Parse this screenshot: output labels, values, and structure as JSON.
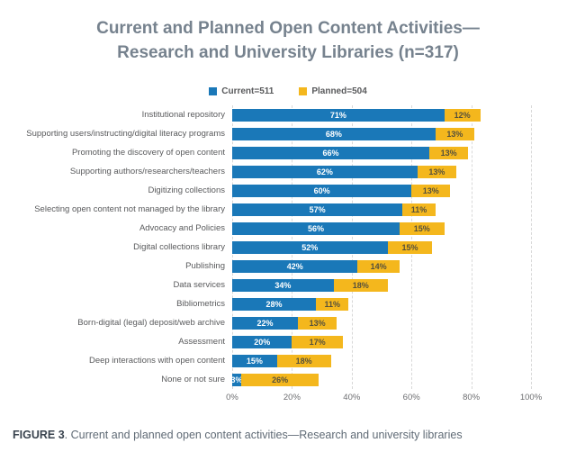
{
  "title": {
    "line1": "Current and Planned Open Content Activities—",
    "line2": "Research and University Libraries (n=317)"
  },
  "legend": {
    "items": [
      {
        "label": "Current=511",
        "color": "#1a78b8"
      },
      {
        "label": "Planned=504",
        "color": "#f4b71d"
      }
    ]
  },
  "chart_data": {
    "type": "bar",
    "orientation": "horizontal-stacked",
    "title": "Current and Planned Open Content Activities—Research and University Libraries (n=317)",
    "categories": [
      "Institutional repository",
      "Supporting users/instructing/digital literacy programs",
      "Promoting the discovery of open content",
      "Supporting authors/researchers/teachers",
      "Digitizing collections",
      "Selecting open content not managed by the library",
      "Advocacy and Policies",
      "Digital collections library",
      "Publishing",
      "Data services",
      "Bibliometrics",
      "Born-digital (legal) deposit/web archive",
      "Assessment",
      "Deep interactions with open content",
      "None or not sure"
    ],
    "series": [
      {
        "name": "Current",
        "color": "#1a78b8",
        "values": [
          71,
          68,
          66,
          62,
          60,
          57,
          56,
          52,
          42,
          34,
          28,
          22,
          20,
          15,
          3
        ]
      },
      {
        "name": "Planned",
        "color": "#f4b71d",
        "values": [
          12,
          13,
          13,
          13,
          13,
          11,
          15,
          15,
          14,
          18,
          11,
          13,
          17,
          18,
          26
        ]
      }
    ],
    "value_suffix": "%",
    "x_ticks": [
      "0%",
      "20%",
      "40%",
      "60%",
      "80%",
      "100%"
    ],
    "xlim": [
      0,
      100
    ],
    "grid": "vertical-dashed",
    "legend_position": "top"
  },
  "caption": {
    "prefix": "FIGURE 3",
    "text": ". Current and planned open content activities—Research and university libraries"
  }
}
